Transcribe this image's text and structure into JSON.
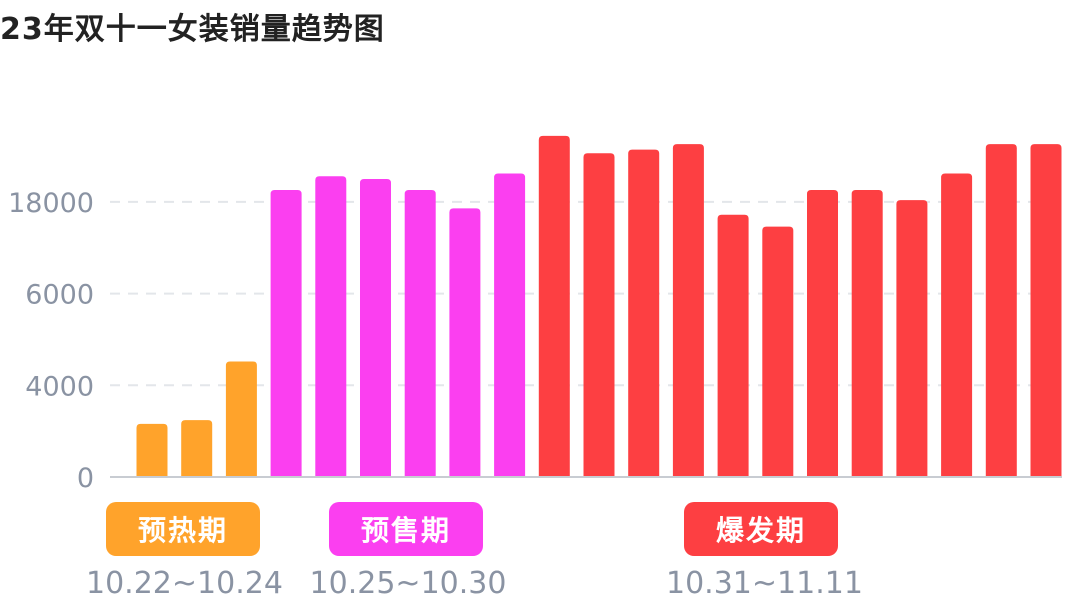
{
  "colors": {
    "preheat": "#ffa32b",
    "presale": "#fb3ff0",
    "burst": "#fd3f42",
    "grid": "#e3e6ea",
    "axis": "#c8ccd2",
    "tick_text": "#8a93a3"
  },
  "chart_data": {
    "type": "bar",
    "title": "23年双十一女装销量趋势图",
    "xlabel": "",
    "ylabel": "",
    "y_ticks": [
      "0",
      "4000",
      "6000",
      "18000"
    ],
    "grid": true,
    "bars": [
      {
        "value": 0.58,
        "phase": "preheat"
      },
      {
        "value": 0.62,
        "phase": "preheat"
      },
      {
        "value": 1.26,
        "phase": "preheat"
      },
      {
        "value": 3.13,
        "phase": "presale"
      },
      {
        "value": 3.28,
        "phase": "presale"
      },
      {
        "value": 3.25,
        "phase": "presale"
      },
      {
        "value": 3.13,
        "phase": "presale"
      },
      {
        "value": 2.93,
        "phase": "presale"
      },
      {
        "value": 3.31,
        "phase": "presale"
      },
      {
        "value": 3.72,
        "phase": "burst"
      },
      {
        "value": 3.53,
        "phase": "burst"
      },
      {
        "value": 3.57,
        "phase": "burst"
      },
      {
        "value": 3.63,
        "phase": "burst"
      },
      {
        "value": 2.86,
        "phase": "burst"
      },
      {
        "value": 2.73,
        "phase": "burst"
      },
      {
        "value": 3.13,
        "phase": "burst"
      },
      {
        "value": 3.13,
        "phase": "burst"
      },
      {
        "value": 3.02,
        "phase": "burst"
      },
      {
        "value": 3.31,
        "phase": "burst"
      },
      {
        "value": 3.63,
        "phase": "burst"
      },
      {
        "value": 3.63,
        "phase": "burst"
      }
    ],
    "phases": [
      {
        "key": "preheat",
        "label": "预热期",
        "range": "10.22~10.24"
      },
      {
        "key": "presale",
        "label": "预售期",
        "range": "10.25~10.30"
      },
      {
        "key": "burst",
        "label": "爆发期",
        "range": "10.31~11.11"
      }
    ]
  }
}
